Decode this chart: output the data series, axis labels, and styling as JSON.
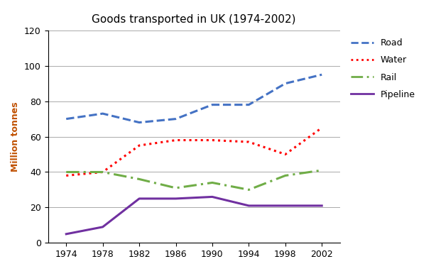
{
  "title": "Goods transported in UK (1974-2002)",
  "ylabel": "Million tonnes",
  "years": [
    1974,
    1978,
    1982,
    1986,
    1990,
    1994,
    1998,
    2002
  ],
  "road": [
    70,
    73,
    68,
    70,
    78,
    78,
    90,
    95
  ],
  "water": [
    38,
    40,
    55,
    58,
    58,
    57,
    50,
    65
  ],
  "rail": [
    40,
    40,
    36,
    31,
    34,
    30,
    38,
    41
  ],
  "pipeline": [
    5,
    9,
    25,
    25,
    26,
    21,
    21,
    21
  ],
  "road_color": "#4472C4",
  "water_color": "#FF0000",
  "rail_color": "#70AD47",
  "pipeline_color": "#7030A0",
  "ylim": [
    0,
    120
  ],
  "yticks": [
    0,
    20,
    40,
    60,
    80,
    100,
    120
  ],
  "title_fontsize": 11,
  "ylabel_fontsize": 9,
  "ylabel_color": "#C05000",
  "tick_fontsize": 9,
  "legend_fontsize": 9,
  "linewidth": 2.2
}
